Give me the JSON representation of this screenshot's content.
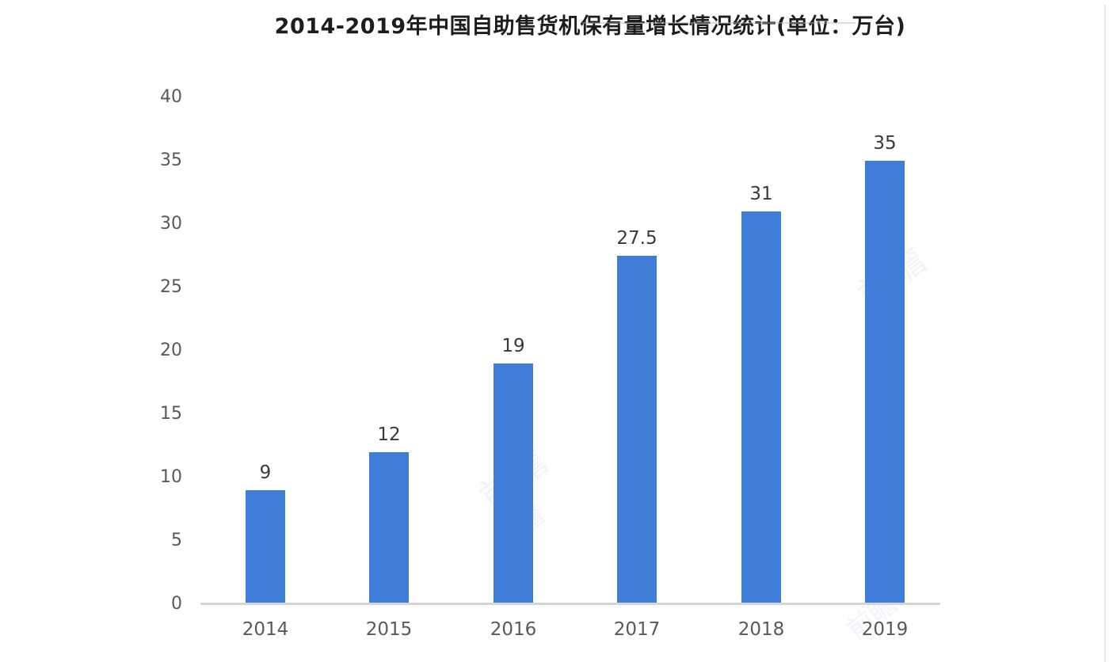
{
  "title": "2014-2019年中国自助售货机保有量增长情况统计(单位：万台)",
  "chart_data": {
    "type": "bar",
    "title": "2014-2019年中国自助售货机保有量增长情况统计(单位：万台)",
    "categories": [
      "2014",
      "2015",
      "2016",
      "2017",
      "2018",
      "2019"
    ],
    "values": [
      9,
      12,
      19,
      27.5,
      31,
      35
    ],
    "data_labels": [
      "9",
      "12",
      "19",
      "27.5",
      "31",
      "35"
    ],
    "xlabel": "",
    "ylabel": "",
    "unit": "万台",
    "ylim": [
      0,
      40
    ],
    "yticks": [
      0,
      5,
      10,
      15,
      20,
      25,
      30,
      35,
      40
    ],
    "grid": false,
    "legend": false,
    "bar_color": "#3e7ed9"
  },
  "colors": {
    "bar": "#3e7ed9",
    "axis_line": "#d5d5d5",
    "tick_label": "#595959",
    "data_label": "#3a3a3a",
    "title": "#1d1d1d"
  },
  "watermark": {
    "text": "前瞻"
  }
}
